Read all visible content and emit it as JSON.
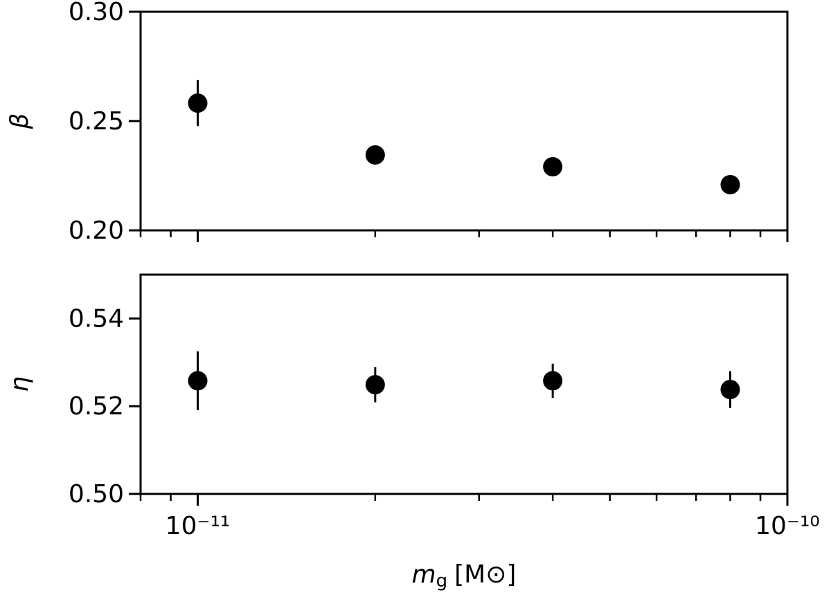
{
  "chart_data": [
    {
      "type": "errorbar",
      "ylabel": "β",
      "xscale": "log",
      "x": [
        1e-11,
        2e-11,
        4e-11,
        8e-11
      ],
      "series": [
        {
          "color": "#000000",
          "values": [
            0.2582,
            0.2345,
            0.2291,
            0.2209
          ],
          "errors": [
            0.0105,
            0.002,
            0.0015,
            0.001
          ]
        }
      ],
      "xlim": [
        8e-12,
        1e-10
      ],
      "xticks": [
        1e-11,
        1e-10
      ],
      "xminorticks": [
        8e-12,
        9e-12,
        2e-11,
        3e-11,
        4e-11,
        5e-11,
        6e-11,
        7e-11,
        8e-11,
        9e-11
      ],
      "ylim": [
        0.2,
        0.3
      ],
      "yticks": [
        {
          "value": 0.2,
          "label": "0.20"
        },
        0.25,
        {
          "value": 0.3,
          "label": "0.30"
        }
      ]
    },
    {
      "type": "errorbar",
      "ylabel": "η",
      "xscale": "log",
      "xlabel": {
        "symbol": "m",
        "subscript": "g",
        "unit": "[M⊙]"
      },
      "x": [
        1e-11,
        2e-11,
        4e-11,
        8e-11
      ],
      "series": [
        {
          "color": "#000000",
          "values": [
            0.5258,
            0.5249,
            0.5258,
            0.5238
          ],
          "errors": [
            0.0067,
            0.004,
            0.0039,
            0.0042
          ]
        }
      ],
      "xlim": [
        8e-12,
        1e-10
      ],
      "xticks": [
        {
          "value": 1e-11,
          "label": "10⁻¹¹"
        },
        {
          "value": 1e-10,
          "label": "10⁻¹⁰"
        }
      ],
      "xminorticks": [
        8e-12,
        9e-12,
        2e-11,
        3e-11,
        4e-11,
        5e-11,
        6e-11,
        7e-11,
        8e-11,
        9e-11
      ],
      "ylim": [
        0.5,
        0.55
      ],
      "yticks": [
        {
          "value": 0.5,
          "label": "0.50"
        },
        0.52,
        0.54
      ]
    }
  ]
}
